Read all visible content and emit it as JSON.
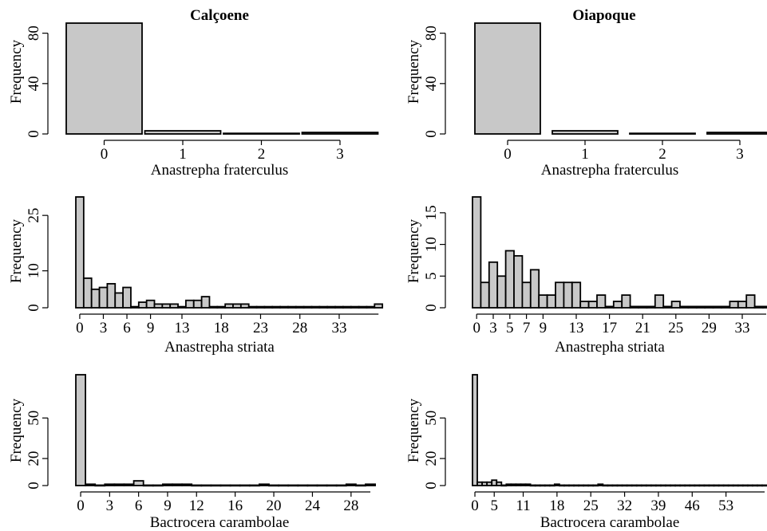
{
  "chart_data": [
    {
      "type": "bar",
      "panel": "calcoene-fraterculus",
      "title": "Calçoene",
      "xlabel": "Anastrepha fraterculus",
      "ylabel": "Frequency",
      "x": [
        0,
        1,
        2,
        3
      ],
      "values": [
        88,
        2.5,
        0.5,
        1.2
      ],
      "x_tick_labels": [
        "0",
        "1",
        "2",
        "3"
      ],
      "y_ticks": [
        0,
        40,
        80
      ],
      "ylim": [
        0,
        88
      ]
    },
    {
      "type": "bar",
      "panel": "oiapoque-fraterculus",
      "title": "Oiapoque",
      "xlabel": "Anastrepha fraterculus",
      "ylabel": "Frequency",
      "x": [
        0,
        1,
        2,
        3
      ],
      "values": [
        88,
        2.5,
        0.5,
        1.2
      ],
      "x_tick_labels": [
        "0",
        "1",
        "2",
        "3"
      ],
      "y_ticks": [
        0,
        40,
        80
      ],
      "ylim": [
        0,
        88
      ]
    },
    {
      "type": "bar",
      "panel": "calcoene-striata",
      "title": "",
      "xlabel": "Anastrepha striata",
      "ylabel": "Frequency",
      "x": [
        0,
        1,
        2,
        3,
        4,
        5,
        6,
        7,
        8,
        9,
        10,
        11,
        12,
        13,
        14,
        15,
        16,
        17,
        18,
        19,
        20,
        21,
        22,
        23,
        24,
        25,
        26,
        27,
        28,
        29,
        30,
        31,
        32,
        33,
        34,
        35,
        36,
        37,
        38
      ],
      "values": [
        30,
        8,
        5,
        5.5,
        6.5,
        4,
        5.5,
        0.3,
        1.5,
        2,
        1,
        1,
        1,
        0.3,
        2,
        2,
        3,
        0.3,
        0.3,
        1,
        1,
        1,
        0.3,
        0.3,
        0.3,
        0.3,
        0.3,
        0.3,
        0.3,
        0.3,
        0.3,
        0.3,
        0.3,
        0.3,
        0.3,
        0.3,
        0.3,
        0.3,
        1
      ],
      "x_tick_labels": [
        "0",
        "3",
        "6",
        "9",
        "13",
        "18",
        "23",
        "28",
        "33"
      ],
      "x_tick_index": [
        0,
        3,
        6,
        9,
        13,
        18,
        23,
        28,
        33
      ],
      "y_ticks": [
        0,
        10,
        25
      ],
      "ylim": [
        0,
        30
      ]
    },
    {
      "type": "bar",
      "panel": "oiapoque-striata",
      "title": "",
      "xlabel": "Anastrepha striata",
      "ylabel": "Frequency",
      "x": [
        0,
        1,
        2,
        3,
        4,
        5,
        6,
        7,
        8,
        9,
        10,
        11,
        12,
        13,
        14,
        15,
        16,
        17,
        18,
        19,
        20,
        21,
        22,
        23,
        24,
        25,
        26,
        27,
        28,
        29,
        30,
        31,
        32,
        33,
        34,
        35
      ],
      "values": [
        17.5,
        4,
        7.2,
        5,
        9,
        8.2,
        4,
        6,
        2,
        2,
        4,
        4,
        4,
        1,
        1,
        2,
        0.2,
        1,
        2,
        0.2,
        0.2,
        0.2,
        2,
        0.2,
        1,
        0.2,
        0.2,
        0.2,
        0.2,
        0.2,
        0.2,
        1,
        1,
        2,
        0.2,
        0.2
      ],
      "x_tick_labels": [
        "0",
        "3",
        "5",
        "7",
        "9",
        "13",
        "17",
        "21",
        "25",
        "29",
        "33"
      ],
      "x_tick_index": [
        0,
        2,
        4,
        6,
        8,
        12,
        16,
        20,
        24,
        28,
        32
      ],
      "y_ticks": [
        0,
        5,
        10,
        15
      ],
      "ylim": [
        0,
        17.5
      ]
    },
    {
      "type": "bar",
      "panel": "calcoene-carambolae",
      "title": "",
      "xlabel": "Bactrocera carambolae",
      "ylabel": "Frequency",
      "x": [
        0,
        1,
        2,
        3,
        4,
        5,
        6,
        7,
        8,
        9,
        10,
        11,
        12,
        13,
        14,
        15,
        16,
        17,
        18,
        19,
        20,
        21,
        22,
        23,
        24,
        25,
        26,
        27,
        28,
        29,
        30
      ],
      "values": [
        82,
        1,
        0.3,
        1,
        1,
        1,
        3.5,
        0.3,
        0.3,
        1,
        1,
        1,
        0.3,
        0.3,
        0.3,
        0.3,
        0.3,
        0.3,
        0.3,
        1,
        0.3,
        0.3,
        0.3,
        0.3,
        0.3,
        0.3,
        0.3,
        0.3,
        1,
        0.3,
        1
      ],
      "x_tick_labels": [
        "0",
        "3",
        "6",
        "9",
        "12",
        "16",
        "20",
        "24",
        "28"
      ],
      "x_tick_index": [
        0,
        3,
        6,
        9,
        12,
        16,
        20,
        24,
        28
      ],
      "y_ticks": [
        0,
        20,
        50
      ],
      "ylim": [
        0,
        82
      ]
    },
    {
      "type": "bar",
      "panel": "oiapoque-carambolae",
      "title": "",
      "xlabel": "Bactrocera carambolae",
      "ylabel": "Frequency",
      "x": [
        0,
        1,
        2,
        3,
        4,
        5,
        6,
        7,
        8,
        9,
        10,
        11,
        12,
        13,
        14,
        15,
        16,
        17,
        18,
        19,
        20,
        21,
        22,
        23,
        24,
        25,
        26,
        27,
        28,
        29,
        30,
        31,
        32,
        33,
        34,
        35,
        36,
        37,
        38,
        39,
        40,
        41,
        42,
        43,
        44,
        45,
        46,
        47,
        48,
        49,
        50,
        51,
        52,
        53,
        54,
        55,
        56,
        57,
        58,
        59,
        60
      ],
      "values": [
        82,
        2.5,
        2.5,
        2.5,
        4,
        2.5,
        0.3,
        1,
        1,
        1,
        1,
        1,
        0.3,
        0.3,
        0.3,
        0.3,
        0.3,
        1,
        0.3,
        0.3,
        0.3,
        0.3,
        0.3,
        0.3,
        0.3,
        0.3,
        1,
        0.3,
        0.3,
        0.3,
        0.3,
        0.3,
        0.3,
        0.3,
        0.3,
        0.3,
        0.3,
        0.3,
        0.3,
        0.3,
        0.3,
        0.3,
        0.3,
        0.3,
        0.3,
        0.3,
        0.3,
        0.3,
        0.3,
        0.3,
        0.3,
        0.3,
        0.3,
        0.3,
        0.3,
        0.3,
        0.3,
        0.3,
        0.3,
        0.3,
        0.3
      ],
      "x_tick_labels": [
        "0",
        "5",
        "11",
        "18",
        "25",
        "32",
        "39",
        "46",
        "53"
      ],
      "x_tick_index": [
        0,
        4,
        10,
        17,
        24,
        31,
        38,
        45,
        52
      ],
      "y_ticks": [
        0,
        20,
        50
      ],
      "ylim": [
        0,
        82
      ]
    }
  ]
}
